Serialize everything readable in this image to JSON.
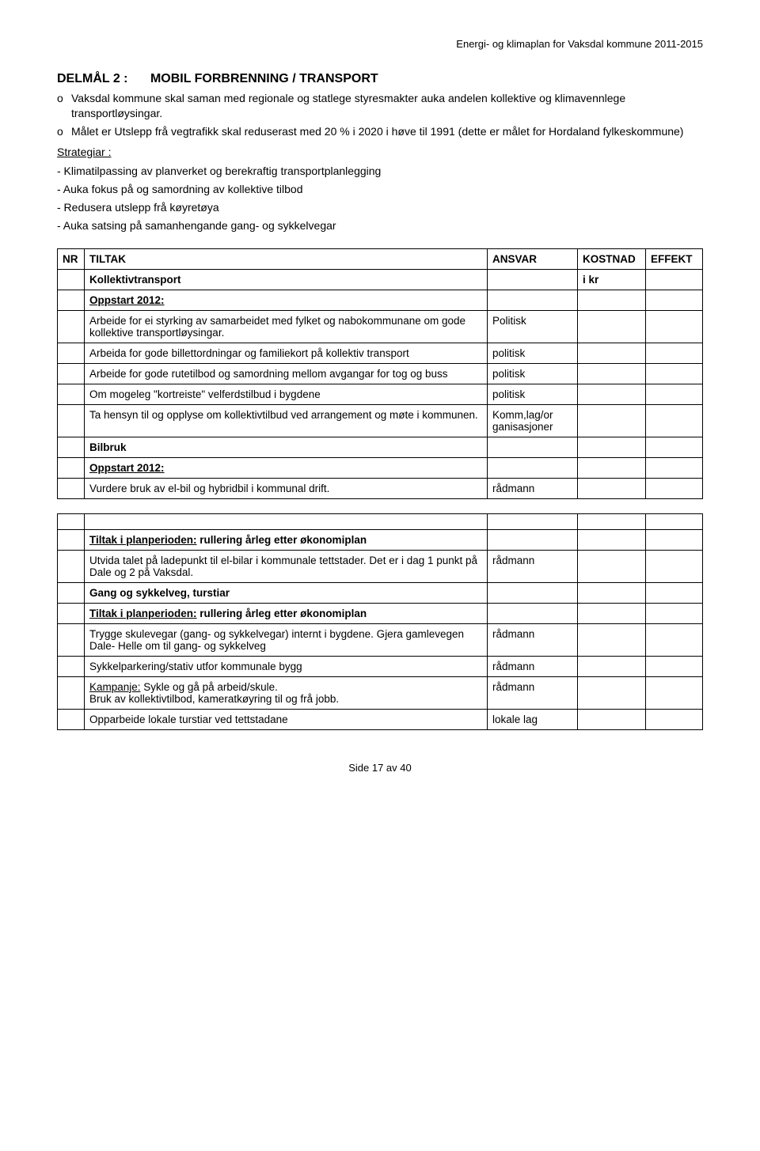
{
  "header": {
    "doc_title": "Energi- og klimaplan for Vaksdal kommune 2011-2015"
  },
  "section": {
    "goal_label": "DELMÅL 2 :",
    "goal_title": "MOBIL FORBRENNING / TRANSPORT",
    "bullet_symbol": "o",
    "bullets": [
      "Vaksdal kommune skal saman med regionale og statlege styresmakter auka andelen kollektive og klimavennlege transportløysingar.",
      "Målet er Utslepp frå vegtrafikk skal reduserast med 20 % i 2020 i høve til 1991 (dette er målet for Hordaland fylkeskommune)"
    ],
    "strategy_label": "Strategiar :",
    "strategies": [
      "- Klimatilpassing av planverket og berekraftig transportplanlegging",
      "- Auka fokus på og samordning av kollektive tilbod",
      "- Redusera utslepp frå køyretøya",
      "- Auka satsing på samanhengande gang- og sykkelvegar"
    ]
  },
  "table1": {
    "head": {
      "nr": "NR",
      "tiltak": "TILTAK",
      "ansvar": "ANSVAR",
      "kostnad": "KOSTNAD",
      "effekt": "EFFEKT"
    },
    "sub1": {
      "tiltak": "Kollektivtransport",
      "kostnad": "i kr"
    },
    "rows": [
      {
        "tiltak": "Oppstart 2012:",
        "style": "sub-u"
      },
      {
        "tiltak": "Arbeide for ei styrking av samarbeidet med fylket og nabokommunane om gode kollektive transportløysingar.",
        "ansvar": "Politisk"
      },
      {
        "tiltak": "Arbeida for gode billettordningar og familiekort på kollektiv transport",
        "ansvar": "politisk"
      },
      {
        "tiltak": "Arbeide for gode rutetilbod og samordning mellom avgangar for tog og buss",
        "ansvar": "politisk"
      },
      {
        "tiltak": "Om mogeleg \"kortreiste\" velferdstilbud i bygdene",
        "ansvar": "politisk"
      },
      {
        "tiltak": "Ta hensyn til og opplyse om kollektivtilbud ved arrangement og møte i kommunen.",
        "ansvar": "Komm,lag/or\nganisasjoner"
      },
      {
        "tiltak": "Bilbruk",
        "style": "sub"
      },
      {
        "tiltak": "Oppstart 2012:",
        "style": "sub-u"
      },
      {
        "tiltak": "Vurdere bruk av el-bil og hybridbil i kommunal drift.",
        "ansvar": "rådmann"
      }
    ]
  },
  "table2": {
    "rows": [
      {
        "tiltak_prefix": "Tiltak i planperioden:",
        "tiltak_rest": " rullering årleg etter økonomiplan",
        "style": "sub-inline"
      },
      {
        "tiltak": "Utvida talet på ladepunkt til el-bilar i kommunale tettstader.  Det er i dag 1 punkt på Dale og 2 på Vaksdal.",
        "ansvar": "rådmann"
      },
      {
        "tiltak": "Gang og sykkelveg, turstiar",
        "style": "sub"
      },
      {
        "tiltak_prefix": "Tiltak i planperioden:",
        "tiltak_rest": " rullering årleg etter økonomiplan",
        "style": "sub-inline"
      },
      {
        "tiltak": "Trygge skulevegar (gang- og sykkelvegar) internt i bygdene. Gjera gamlevegen Dale- Helle om til gang- og sykkelveg",
        "ansvar": "rådmann"
      },
      {
        "tiltak": "Sykkelparkering/stativ utfor kommunale bygg",
        "ansvar": "rådmann"
      },
      {
        "tiltak_prefix": "Kampanje:",
        "tiltak_rest": " Sykle og gå på arbeid/skule.\nBruk av kollektivtilbod, kameratkøyring til og frå jobb.",
        "ansvar": "rådmann",
        "style": "inline-u"
      },
      {
        "tiltak": "Opparbeide lokale turstiar ved tettstadane",
        "ansvar": "lokale lag"
      }
    ]
  },
  "footer": {
    "page": "Side 17 av 40"
  }
}
